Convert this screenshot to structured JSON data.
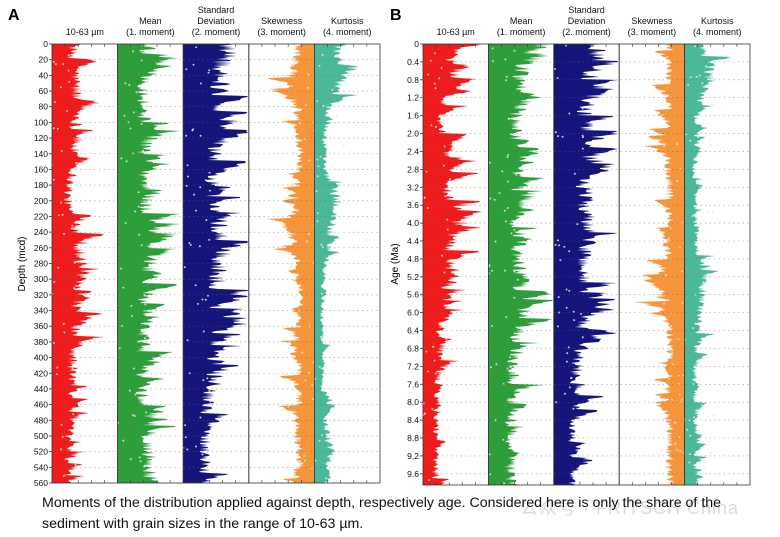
{
  "caption": "Moments of the distribution applied against depth, respectively age. Considered here is only the share of the sediment with grain sizes in the range of 10-63 µm.",
  "watermark": "公众号 · FRITSCH China",
  "chart_data": [
    {
      "type": "area",
      "panel": "A",
      "ylabel": "Depth (mcd)",
      "ylim": [
        0,
        560
      ],
      "y_inverted": true,
      "yticks": [
        0,
        20,
        40,
        60,
        80,
        100,
        120,
        140,
        160,
        180,
        200,
        220,
        240,
        260,
        280,
        300,
        320,
        340,
        360,
        380,
        400,
        420,
        440,
        460,
        480,
        500,
        520,
        540,
        560
      ],
      "grid": "dotted horizontal",
      "columns": [
        {
          "title": [
            "10-63 µm",
            ""
          ],
          "color": "#ee1c1c",
          "baseline": "left",
          "profile_depth": [
            0,
            40,
            80,
            120,
            160,
            200,
            240,
            280,
            320,
            360,
            400,
            440,
            480,
            520,
            560
          ],
          "relative_value": [
            0.35,
            0.45,
            0.5,
            0.45,
            0.4,
            0.3,
            0.5,
            0.55,
            0.45,
            0.45,
            0.4,
            0.4,
            0.35,
            0.3,
            0.3
          ]
        },
        {
          "title": [
            "Mean",
            "(1. moment)"
          ],
          "color": "#2e9e3a",
          "baseline": "left",
          "profile_depth": [
            0,
            40,
            80,
            120,
            160,
            200,
            240,
            280,
            320,
            360,
            400,
            440,
            480,
            520,
            560
          ],
          "relative_value": [
            0.6,
            0.55,
            0.5,
            0.55,
            0.5,
            0.55,
            0.6,
            0.6,
            0.55,
            0.5,
            0.5,
            0.45,
            0.5,
            0.6,
            0.65
          ]
        },
        {
          "title": [
            "Standard",
            "Deviation",
            "(2. moment)"
          ],
          "color": "#14147a",
          "baseline": "left",
          "profile_depth": [
            0,
            40,
            80,
            120,
            160,
            200,
            240,
            280,
            320,
            360,
            400,
            440,
            480,
            520,
            560
          ],
          "relative_value": [
            0.85,
            0.75,
            0.7,
            0.65,
            0.6,
            0.55,
            0.7,
            0.7,
            0.65,
            0.6,
            0.55,
            0.5,
            0.45,
            0.45,
            0.4
          ]
        },
        {
          "title": [
            "Skewness",
            "(3. moment)"
          ],
          "color": "#f7953c",
          "baseline": "right",
          "profile_depth": [
            0,
            40,
            80,
            120,
            160,
            200,
            240,
            280,
            320,
            360,
            400,
            440,
            480,
            520,
            560
          ],
          "relative_value": [
            0.3,
            0.45,
            0.35,
            0.3,
            0.3,
            0.4,
            0.45,
            0.3,
            0.25,
            0.3,
            0.3,
            0.3,
            0.35,
            0.3,
            0.3
          ]
        },
        {
          "title": [
            "Kurtosis",
            "(4. moment)"
          ],
          "color": "#4bb89a",
          "baseline": "left",
          "profile_depth": [
            0,
            40,
            80,
            120,
            160,
            200,
            240,
            280,
            320,
            360,
            400,
            440,
            480,
            520,
            560
          ],
          "relative_value": [
            0.3,
            0.6,
            0.25,
            0.2,
            0.2,
            0.45,
            0.3,
            0.2,
            0.15,
            0.15,
            0.15,
            0.15,
            0.2,
            0.35,
            0.2
          ]
        }
      ]
    },
    {
      "type": "area",
      "panel": "B",
      "ylabel": "Age (Ma)",
      "ylim": [
        0,
        9.85
      ],
      "y_inverted": true,
      "yticks": [
        "0",
        "0.4",
        "0.8",
        "1.2",
        "1.6",
        "2.0",
        "2.4",
        "2.8",
        "3.2",
        "3.6",
        "4.0",
        "4.4",
        "4.8",
        "5.2",
        "5.6",
        "6.0",
        "6.4",
        "6.8",
        "7.2",
        "7.6",
        "8.0",
        "8.4",
        "8.8",
        "9.2",
        "9.6"
      ],
      "grid": "dotted horizontal",
      "columns": [
        {
          "title": [
            "10-63 µm",
            ""
          ],
          "color": "#ee1c1c",
          "baseline": "left",
          "profile_age": [
            0,
            0.8,
            1.6,
            2.4,
            3.2,
            4.0,
            4.8,
            5.6,
            6.4,
            7.2,
            8.0,
            8.8,
            9.85
          ],
          "relative_value": [
            0.5,
            0.55,
            0.3,
            0.45,
            0.5,
            0.55,
            0.5,
            0.45,
            0.35,
            0.3,
            0.3,
            0.25,
            0.25
          ]
        },
        {
          "title": [
            "Mean",
            "(1. moment)"
          ],
          "color": "#2e9e3a",
          "baseline": "left",
          "profile_age": [
            0,
            0.8,
            1.6,
            2.4,
            3.2,
            4.0,
            4.8,
            5.6,
            6.4,
            7.2,
            8.0,
            8.8,
            9.85
          ],
          "relative_value": [
            0.7,
            0.65,
            0.55,
            0.5,
            0.55,
            0.5,
            0.55,
            0.7,
            0.55,
            0.5,
            0.45,
            0.4,
            0.45
          ]
        },
        {
          "title": [
            "Standard",
            "Deviation",
            "(2. moment)"
          ],
          "color": "#14147a",
          "baseline": "left",
          "profile_age": [
            0,
            0.8,
            1.6,
            2.4,
            3.2,
            4.0,
            4.8,
            5.6,
            6.4,
            7.2,
            8.0,
            8.8,
            9.85
          ],
          "relative_value": [
            0.85,
            0.7,
            0.6,
            0.65,
            0.6,
            0.65,
            0.6,
            0.55,
            0.55,
            0.45,
            0.4,
            0.35,
            0.35
          ]
        },
        {
          "title": [
            "Skewness",
            "(3. moment)"
          ],
          "color": "#f7953c",
          "baseline": "right",
          "profile_age": [
            0,
            0.8,
            1.6,
            2.4,
            3.2,
            4.0,
            4.8,
            5.6,
            6.4,
            7.2,
            8.0,
            8.8,
            9.85
          ],
          "relative_value": [
            0.3,
            0.3,
            0.3,
            0.35,
            0.3,
            0.3,
            0.35,
            0.45,
            0.3,
            0.3,
            0.3,
            0.3,
            0.3
          ]
        },
        {
          "title": [
            "Kurtosis",
            "(4. moment)"
          ],
          "color": "#4bb89a",
          "baseline": "left",
          "profile_age": [
            0,
            0.8,
            1.6,
            2.4,
            3.2,
            4.0,
            4.8,
            5.6,
            6.4,
            7.2,
            8.0,
            8.8,
            9.85
          ],
          "relative_value": [
            0.3,
            0.5,
            0.2,
            0.2,
            0.2,
            0.2,
            0.25,
            0.35,
            0.25,
            0.2,
            0.2,
            0.2,
            0.2
          ]
        }
      ]
    }
  ]
}
